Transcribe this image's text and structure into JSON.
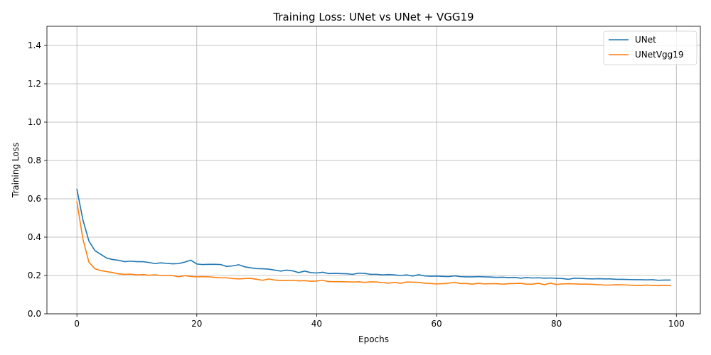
{
  "chart_data": {
    "type": "line",
    "title": "Training Loss: UNet vs UNet + VGG19",
    "xlabel": "Epochs",
    "ylabel": "Training Loss",
    "xlim": [
      -5,
      104
    ],
    "ylim": [
      0,
      1.5
    ],
    "xticks": [
      "0",
      "20",
      "40",
      "60",
      "80",
      "100"
    ],
    "yticks": [
      "0.0",
      "0.2",
      "0.4",
      "0.6",
      "0.8",
      "1.0",
      "1.2",
      "1.4"
    ],
    "grid": true,
    "legend_position": "top-right",
    "series": [
      {
        "name": "UNet",
        "color": "#1f77b4",
        "values": [
          0.65,
          0.49,
          0.38,
          0.33,
          0.31,
          0.29,
          0.283,
          0.279,
          0.272,
          0.275,
          0.272,
          0.272,
          0.268,
          0.262,
          0.266,
          0.263,
          0.261,
          0.262,
          0.27,
          0.28,
          0.26,
          0.257,
          0.258,
          0.258,
          0.257,
          0.247,
          0.25,
          0.256,
          0.245,
          0.24,
          0.236,
          0.235,
          0.233,
          0.228,
          0.223,
          0.228,
          0.224,
          0.215,
          0.223,
          0.215,
          0.213,
          0.217,
          0.21,
          0.211,
          0.21,
          0.209,
          0.206,
          0.212,
          0.211,
          0.206,
          0.206,
          0.203,
          0.205,
          0.203,
          0.2,
          0.203,
          0.197,
          0.204,
          0.198,
          0.196,
          0.197,
          0.195,
          0.194,
          0.198,
          0.194,
          0.193,
          0.193,
          0.194,
          0.193,
          0.192,
          0.19,
          0.191,
          0.189,
          0.19,
          0.186,
          0.189,
          0.187,
          0.188,
          0.186,
          0.187,
          0.185,
          0.184,
          0.18,
          0.186,
          0.185,
          0.183,
          0.182,
          0.183,
          0.182,
          0.182,
          0.18,
          0.18,
          0.179,
          0.178,
          0.178,
          0.177,
          0.178,
          0.175,
          0.176,
          0.176
        ]
      },
      {
        "name": "UNetVgg19",
        "color": "#ff7f0e",
        "values": [
          0.585,
          0.39,
          0.27,
          0.235,
          0.225,
          0.22,
          0.215,
          0.208,
          0.206,
          0.207,
          0.203,
          0.205,
          0.201,
          0.203,
          0.2,
          0.2,
          0.199,
          0.193,
          0.199,
          0.195,
          0.193,
          0.194,
          0.193,
          0.19,
          0.188,
          0.188,
          0.184,
          0.182,
          0.184,
          0.185,
          0.18,
          0.175,
          0.182,
          0.176,
          0.174,
          0.174,
          0.175,
          0.172,
          0.173,
          0.17,
          0.171,
          0.175,
          0.168,
          0.168,
          0.168,
          0.167,
          0.166,
          0.167,
          0.164,
          0.167,
          0.166,
          0.163,
          0.16,
          0.164,
          0.159,
          0.166,
          0.165,
          0.164,
          0.16,
          0.158,
          0.156,
          0.157,
          0.16,
          0.164,
          0.158,
          0.158,
          0.155,
          0.159,
          0.156,
          0.157,
          0.157,
          0.155,
          0.157,
          0.158,
          0.159,
          0.155,
          0.155,
          0.159,
          0.152,
          0.16,
          0.153,
          0.156,
          0.157,
          0.156,
          0.155,
          0.155,
          0.154,
          0.152,
          0.15,
          0.15,
          0.152,
          0.151,
          0.15,
          0.148,
          0.148,
          0.15,
          0.148,
          0.147,
          0.148,
          0.147
        ]
      }
    ]
  }
}
